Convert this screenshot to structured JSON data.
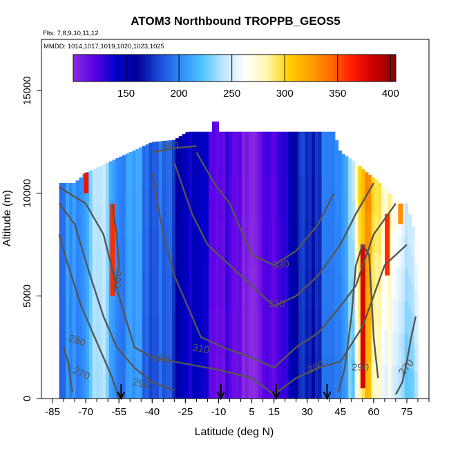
{
  "chart_data": {
    "type": "heatmap",
    "title": "ATOM3 Northbound TROPPB_GEOS5",
    "subtitle_flights": "Flts: 7,8,9,10,11,12",
    "subtitle_dates": "MMDD: 1014,1017,1019,1020,1023,1025",
    "xlabel": "Latitude (deg N)",
    "ylabel": "Altitude (m)",
    "xlim": [
      -90,
      85
    ],
    "ylim": [
      0,
      17500
    ],
    "x_ticks": [
      -85,
      -70,
      -55,
      -40,
      -25,
      -10,
      5,
      15,
      30,
      45,
      60,
      75
    ],
    "y_ticks": [
      0,
      5000,
      10000,
      15000
    ],
    "colorbar": {
      "min": 100,
      "max": 405,
      "tick_values": [
        150,
        200,
        250,
        300,
        350,
        400
      ],
      "colors": [
        "#8a2be2",
        "#5a00e6",
        "#0000c8",
        "#00009a",
        "#1c4bd6",
        "#2e8cff",
        "#4fc3ff",
        "#bfe6ff",
        "#ffffff",
        "#fff7b0",
        "#ffd200",
        "#ffa000",
        "#ff6a00",
        "#ff1a00",
        "#c80000",
        "#8b0000"
      ]
    },
    "data_extent": {
      "lat_min": -82,
      "lat_max": 80,
      "top_by_lat": [
        [
          -82,
          10500
        ],
        [
          -75,
          10500
        ],
        [
          -70,
          11000
        ],
        [
          -60,
          11500
        ],
        [
          -50,
          12000
        ],
        [
          -40,
          12500
        ],
        [
          -30,
          12600
        ],
        [
          -24,
          13000
        ],
        [
          -10,
          13000
        ],
        [
          0,
          13000
        ],
        [
          10,
          13000
        ],
        [
          20,
          13000
        ],
        [
          30,
          13000
        ],
        [
          42,
          13000
        ],
        [
          45,
          12000
        ],
        [
          52,
          11500
        ],
        [
          57,
          11000
        ],
        [
          62,
          10600
        ],
        [
          67,
          10000
        ],
        [
          72,
          9500
        ],
        [
          75,
          9500
        ],
        [
          80,
          7500
        ]
      ],
      "bump": {
        "lat": -12,
        "top": 13500
      }
    },
    "field_profile": [
      {
        "lat": -82,
        "value": 190
      },
      {
        "lat": -75,
        "value": 205
      },
      {
        "lat": -68,
        "value": 232
      },
      {
        "lat": -62,
        "value": 242
      },
      {
        "lat": -58,
        "value": 215
      },
      {
        "lat": -52,
        "value": 208
      },
      {
        "lat": -45,
        "value": 200
      },
      {
        "lat": -38,
        "value": 195
      },
      {
        "lat": -30,
        "value": 175
      },
      {
        "lat": -25,
        "value": 150
      },
      {
        "lat": -20,
        "value": 140
      },
      {
        "lat": -15,
        "value": 135
      },
      {
        "lat": -10,
        "value": 130
      },
      {
        "lat": -5,
        "value": 118
      },
      {
        "lat": 0,
        "value": 112
      },
      {
        "lat": 8,
        "value": 108
      },
      {
        "lat": 15,
        "value": 120
      },
      {
        "lat": 22,
        "value": 150
      },
      {
        "lat": 30,
        "value": 175
      },
      {
        "lat": 38,
        "value": 190
      },
      {
        "lat": 44,
        "value": 198
      },
      {
        "lat": 48,
        "value": 220
      },
      {
        "lat": 53,
        "value": 290
      },
      {
        "lat": 57,
        "value": 330
      },
      {
        "lat": 61,
        "value": 310
      },
      {
        "lat": 65,
        "value": 290
      },
      {
        "lat": 69,
        "value": 270
      },
      {
        "lat": 73,
        "value": 255
      },
      {
        "lat": 78,
        "value": 265
      }
    ],
    "hot_spots": [
      {
        "lat": -58,
        "alt_lo": 5000,
        "alt_hi": 9500,
        "value": 360
      },
      {
        "lat": -70,
        "alt_lo": 10000,
        "alt_hi": 11000,
        "value": 370
      },
      {
        "lat": 55,
        "alt_lo": 500,
        "alt_hi": 7500,
        "value": 380
      },
      {
        "lat": 66,
        "alt_lo": 6000,
        "alt_hi": 9000,
        "value": 360
      },
      {
        "lat": 72,
        "alt_lo": 8500,
        "alt_hi": 9500,
        "value": 330
      }
    ],
    "contours": [
      {
        "level": "270",
        "points": [
          [
            -80,
            2500
          ],
          [
            -78,
            1800
          ],
          [
            -77,
            1000
          ],
          [
            -76,
            300
          ]
        ]
      },
      {
        "level": "270",
        "points": [
          [
            70,
            200
          ],
          [
            73,
            800
          ],
          [
            75,
            1800
          ],
          [
            77,
            3000
          ],
          [
            79,
            4000
          ]
        ]
      },
      {
        "level": "280",
        "points": [
          [
            -82,
            8000
          ],
          [
            -78,
            6500
          ],
          [
            -72,
            4500
          ],
          [
            -66,
            3000
          ],
          [
            -62,
            2000
          ],
          [
            -58,
            1000
          ],
          [
            -55,
            0
          ]
        ]
      },
      {
        "level": "290",
        "points": [
          [
            -82,
            9500
          ],
          [
            -75,
            8500
          ],
          [
            -68,
            6000
          ],
          [
            -62,
            4000
          ],
          [
            -56,
            2500
          ],
          [
            -48,
            1500
          ],
          [
            -40,
            800
          ],
          [
            -30,
            400
          ]
        ]
      },
      {
        "level": "290",
        "points": [
          [
            44,
            300
          ],
          [
            47,
            1500
          ],
          [
            50,
            4000
          ],
          [
            52,
            6500
          ],
          [
            55,
            7500
          ],
          [
            58,
            7000
          ],
          [
            60,
            3000
          ],
          [
            62,
            1000
          ]
        ]
      },
      {
        "level": "300",
        "points": [
          [
            -82,
            10300
          ],
          [
            -70,
            9500
          ],
          [
            -62,
            8000
          ],
          [
            -55,
            5000
          ],
          [
            -48,
            2500
          ],
          [
            -40,
            2000
          ],
          [
            -30,
            1800
          ],
          [
            -20,
            1600
          ],
          [
            -10,
            1400
          ],
          [
            5,
            1000
          ],
          [
            15,
            200
          ]
        ]
      },
      {
        "level": "300",
        "points": [
          [
            -58,
            9500
          ],
          [
            -56,
            8000
          ],
          [
            -55,
            6500
          ],
          [
            -57,
            5200
          ]
        ]
      },
      {
        "level": "300",
        "points": [
          [
            15,
            200
          ],
          [
            25,
            1000
          ],
          [
            35,
            1500
          ],
          [
            45,
            1800
          ],
          [
            55,
            3500
          ],
          [
            65,
            6500
          ],
          [
            75,
            7500
          ]
        ]
      },
      {
        "level": "310",
        "points": [
          [
            -40,
            11000
          ],
          [
            -35,
            8000
          ],
          [
            -30,
            6000
          ],
          [
            -24,
            4500
          ],
          [
            -18,
            3000
          ],
          [
            -8,
            2500
          ],
          [
            5,
            2000
          ],
          [
            15,
            1500
          ],
          [
            25,
            2500
          ],
          [
            35,
            3200
          ],
          [
            45,
            4500
          ],
          [
            52,
            5500
          ],
          [
            60,
            8000
          ],
          [
            70,
            9500
          ]
        ]
      },
      {
        "level": "320",
        "points": [
          [
            -30,
            11500
          ],
          [
            -22,
            9000
          ],
          [
            -15,
            7500
          ],
          [
            -5,
            6500
          ],
          [
            5,
            5500
          ],
          [
            15,
            4500
          ],
          [
            25,
            5000
          ],
          [
            35,
            6000
          ],
          [
            45,
            7500
          ],
          [
            52,
            9000
          ],
          [
            60,
            10500
          ]
        ]
      },
      {
        "level": "330",
        "points": [
          [
            -20,
            12000
          ],
          [
            -12,
            10500
          ],
          [
            -5,
            9500
          ],
          [
            5,
            7000
          ],
          [
            15,
            6500
          ],
          [
            25,
            7200
          ],
          [
            35,
            8500
          ],
          [
            42,
            10000
          ]
        ]
      },
      {
        "level": "340",
        "points": [
          [
            -40,
            12000
          ],
          [
            -30,
            12200
          ],
          [
            -20,
            12300
          ]
        ]
      }
    ],
    "contour_labels": [
      {
        "text": "340",
        "lat": -32,
        "alt": 12300,
        "angle": 0
      },
      {
        "text": "330",
        "lat": 18,
        "alt": 6500,
        "angle": -5
      },
      {
        "text": "320",
        "lat": 16,
        "alt": 4600,
        "angle": 0
      },
      {
        "text": "310",
        "lat": -18,
        "alt": 2400,
        "angle": 10
      },
      {
        "text": "300",
        "lat": -36,
        "alt": 1900,
        "angle": 5
      },
      {
        "text": "300",
        "lat": -56,
        "alt": 5800,
        "angle": 90
      },
      {
        "text": "300",
        "lat": 34,
        "alt": 1500,
        "angle": -25
      },
      {
        "text": "290",
        "lat": -45,
        "alt": 700,
        "angle": 15
      },
      {
        "text": "290",
        "lat": 54,
        "alt": 1500,
        "angle": 0
      },
      {
        "text": "280",
        "lat": -74,
        "alt": 2800,
        "angle": 20
      },
      {
        "text": "270",
        "lat": -72,
        "alt": 1200,
        "angle": 25
      },
      {
        "text": "270",
        "lat": 75,
        "alt": 1500,
        "angle": -50
      }
    ],
    "arrows_lat": [
      -54,
      -9,
      16,
      39
    ]
  }
}
